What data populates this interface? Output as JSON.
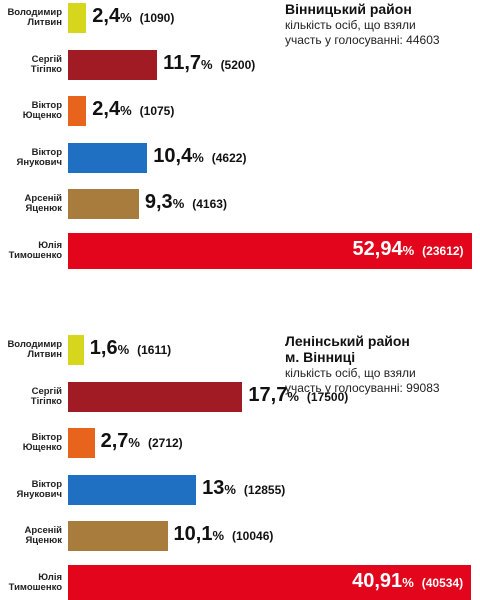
{
  "chart_data": [
    {
      "type": "bar",
      "title": "Вінницький район",
      "subtitle": "кількість осіб, що взяли\nучасть у голосуванні: 44603",
      "categories": [
        "Володимир\nЛитвин",
        "Сергій\nТігіпко",
        "Віктор\nЮщенко",
        "Віктор\nЯнукович",
        "Арсеній\nЯценюк",
        "Юлія\nТимошенко"
      ],
      "values": [
        2.4,
        11.7,
        2.4,
        10.4,
        9.3,
        52.94
      ],
      "value_labels": [
        "2,4%",
        "11,7%",
        "2,4%",
        "10,4%",
        "9,3%",
        "52,94%"
      ],
      "vote_labels": [
        "(1090)",
        "(5200)",
        "(1075)",
        "(4622)",
        "(4163)",
        "(23612)"
      ],
      "colors": [
        "#d6d61c",
        "#a11b24",
        "#e8641c",
        "#1f6fc2",
        "#a77c3d",
        "#e3051b"
      ],
      "xlim": [
        0,
        53
      ]
    },
    {
      "type": "bar",
      "title": "Ленінський район\nм. Вінниці",
      "subtitle": "кількість осіб, що взяли\nучасть у голосуванні: 99083",
      "categories": [
        "Володимир\nЛитвин",
        "Сергій\nТігіпко",
        "Віктор\nЮщенко",
        "Віктор\nЯнукович",
        "Арсеній\nЯценюк",
        "Юлія\nТимошенко"
      ],
      "values": [
        1.6,
        17.7,
        2.7,
        13,
        10.1,
        40.91
      ],
      "value_labels": [
        "1,6%",
        "17,7%",
        "2,7%",
        "13%",
        "10,1%",
        "40,91%"
      ],
      "vote_labels": [
        "(1611)",
        "(17500)",
        "(2712)",
        "(12855)",
        "(10046)",
        "(40534)"
      ],
      "colors": [
        "#d6d61c",
        "#a11b24",
        "#e8641c",
        "#1f6fc2",
        "#a77c3d",
        "#e3051b"
      ],
      "xlim": [
        0,
        41
      ]
    }
  ]
}
